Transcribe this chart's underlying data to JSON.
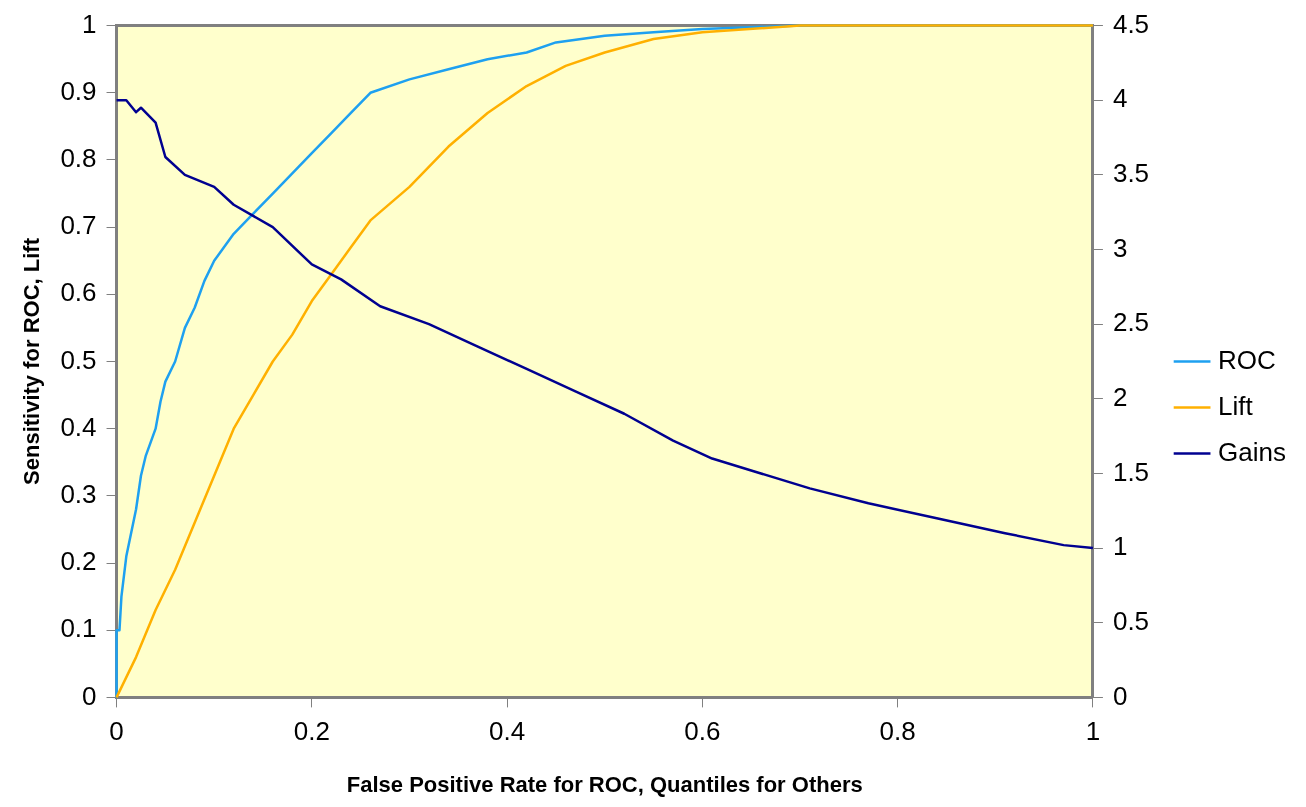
{
  "chart_data": {
    "type": "line",
    "xlabel": "False Positive Rate for ROC, Quantiles for Others",
    "ylabel": "Sensitivity for ROC, Lift",
    "xlim": [
      0,
      1
    ],
    "xticks": [
      0,
      0.2,
      0.4,
      0.6,
      0.8,
      1
    ],
    "ylim": [
      0,
      1
    ],
    "yticks": [
      0,
      0.1,
      0.2,
      0.3,
      0.4,
      0.5,
      0.6,
      0.7,
      0.8,
      0.9,
      1
    ],
    "y2lim": [
      0,
      4.5
    ],
    "y2ticks": [
      0,
      0.5,
      1,
      1.5,
      2,
      2.5,
      3,
      3.5,
      4,
      4.5
    ],
    "grid": false,
    "legend": "right",
    "marker": "none",
    "line_style": "solid",
    "series": [
      {
        "name": "ROC",
        "color": "#1ea0f0",
        "x": [
          0,
          0,
          0.003,
          0.005,
          0.01,
          0.02,
          0.025,
          0.03,
          0.04,
          0.045,
          0.05,
          0.06,
          0.07,
          0.08,
          0.09,
          0.1,
          0.11,
          0.12,
          0.14,
          0.16,
          0.18,
          0.2,
          0.22,
          0.24,
          0.26,
          0.3,
          0.34,
          0.38,
          0.42,
          0.45,
          0.5,
          0.55,
          0.6,
          0.7,
          1
        ],
        "values": [
          0,
          0.1,
          0.1,
          0.15,
          0.21,
          0.28,
          0.33,
          0.36,
          0.4,
          0.44,
          0.47,
          0.5,
          0.55,
          0.58,
          0.62,
          0.65,
          0.67,
          0.69,
          0.72,
          0.75,
          0.78,
          0.81,
          0.84,
          0.87,
          0.9,
          0.92,
          0.935,
          0.95,
          0.96,
          0.975,
          0.985,
          0.99,
          0.995,
          1,
          1
        ]
      },
      {
        "name": "Lift",
        "color": "#ffb000",
        "x": [
          0,
          0.02,
          0.04,
          0.06,
          0.08,
          0.1,
          0.12,
          0.14,
          0.16,
          0.18,
          0.2,
          0.22,
          0.24,
          0.26,
          0.3,
          0.34,
          0.38,
          0.42,
          0.46,
          0.5,
          0.55,
          0.6,
          0.7,
          0.77,
          1
        ],
        "values": [
          0,
          0.06,
          0.13,
          0.19,
          0.26,
          0.33,
          0.4,
          0.45,
          0.5,
          0.54,
          0.59,
          0.63,
          0.67,
          0.71,
          0.76,
          0.82,
          0.87,
          0.91,
          0.94,
          0.96,
          0.98,
          0.99,
          1,
          1,
          1
        ]
      },
      {
        "name": "Gains",
        "color": "#000090",
        "axis": "y2",
        "x": [
          0,
          0.01,
          0.02,
          0.025,
          0.04,
          0.05,
          0.07,
          0.1,
          0.12,
          0.16,
          0.2,
          0.23,
          0.27,
          0.32,
          0.37,
          0.42,
          0.47,
          0.52,
          0.57,
          0.61,
          0.66,
          0.71,
          0.77,
          0.84,
          0.91,
          0.97,
          1
        ],
        "values": [
          4,
          4,
          3.92,
          3.95,
          3.85,
          3.62,
          3.5,
          3.42,
          3.3,
          3.15,
          2.9,
          2.8,
          2.62,
          2.5,
          2.35,
          2.2,
          2.05,
          1.9,
          1.72,
          1.6,
          1.5,
          1.4,
          1.3,
          1.2,
          1.1,
          1.02,
          1
        ]
      }
    ]
  }
}
